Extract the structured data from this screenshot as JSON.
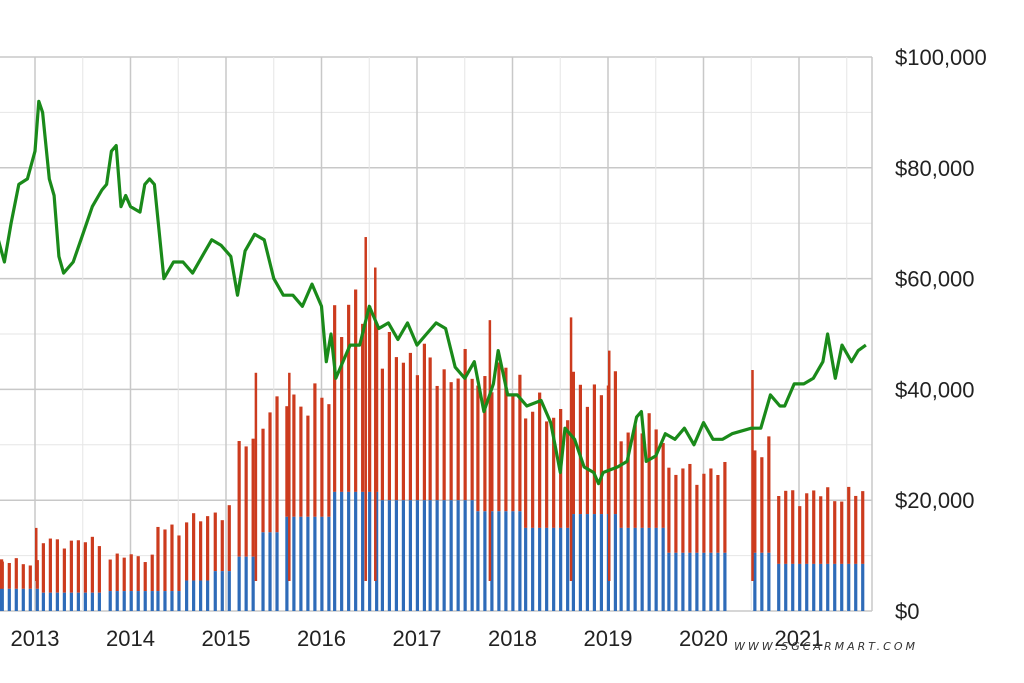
{
  "chart_data": {
    "type": "bar+line",
    "y_axis": {
      "min": 0,
      "max": 100000,
      "ticks": [
        0,
        20000,
        40000,
        60000,
        80000,
        100000
      ],
      "tick_labels": [
        "$0",
        "$20,000",
        "$40,000",
        "$60,000",
        "$80,000",
        "$100,000"
      ],
      "position": "right"
    },
    "x_axis": {
      "tick_labels": [
        "2013",
        "2014",
        "2015",
        "2016",
        "2017",
        "2018",
        "2019",
        "2020",
        "2021"
      ]
    },
    "grid": true,
    "bars": {
      "stacked": true,
      "colors": {
        "bottom": "#2e6bb8",
        "top": "#cc3b1e"
      },
      "segments": [
        {
          "from": "2012.40",
          "to": "2013.05",
          "bottom": 4000,
          "total": 8800
        },
        {
          "from": "2013.05",
          "to": "2013.75",
          "bottom": 3300,
          "total": 12500
        },
        {
          "from": "2013.75",
          "to": "2014.25",
          "bottom": 3600,
          "total": 9800
        },
        {
          "from": "2014.25",
          "to": "2014.55",
          "bottom": 3600,
          "total": 14800
        },
        {
          "from": "2014.55",
          "to": "2014.85",
          "bottom": 5500,
          "total": 16500
        },
        {
          "from": "2014.85",
          "to": "2015.10",
          "bottom": 7200,
          "total": 18000
        },
        {
          "from": "2015.10",
          "to": "2015.35",
          "bottom": 9800,
          "total": 30000
        },
        {
          "from": "2015.35",
          "to": "2015.60",
          "bottom": 14200,
          "total": 36000
        },
        {
          "from": "2015.60",
          "to": "2016.10",
          "bottom": 17000,
          "total": 38000
        },
        {
          "from": "2016.10",
          "to": "2016.60",
          "bottom": 21500,
          "total": 54000
        },
        {
          "from": "2016.60",
          "to": "2017.10",
          "bottom": 20000,
          "total": 46000
        },
        {
          "from": "2017.10",
          "to": "2017.60",
          "bottom": 20000,
          "total": 43000
        },
        {
          "from": "2017.60",
          "to": "2018.10",
          "bottom": 18000,
          "total": 42000
        },
        {
          "from": "2018.10",
          "to": "2018.60",
          "bottom": 15000,
          "total": 36000
        },
        {
          "from": "2018.60",
          "to": "2019.10",
          "bottom": 17500,
          "total": 40000
        },
        {
          "from": "2019.10",
          "to": "2019.60",
          "bottom": 15000,
          "total": 33000
        },
        {
          "from": "2019.60",
          "to": "2020.25",
          "bottom": 10500,
          "total": 25000
        },
        {
          "from": "2020.50",
          "to": "2020.75",
          "bottom": 10500,
          "total": 30000
        },
        {
          "from": "2020.75",
          "to": "2021.75",
          "bottom": 8500,
          "total": 21000
        }
      ],
      "spikes": [
        {
          "x": "2013.00",
          "total": 15000
        },
        {
          "x": "2015.30",
          "total": 43000
        },
        {
          "x": "2015.65",
          "total": 43000
        },
        {
          "x": "2016.45",
          "total": 67500
        },
        {
          "x": "2016.55",
          "total": 62000
        },
        {
          "x": "2017.75",
          "total": 52500
        },
        {
          "x": "2018.60",
          "total": 53000
        },
        {
          "x": "2019.00",
          "total": 47000
        },
        {
          "x": "2020.50",
          "total": 43500
        }
      ]
    },
    "line": {
      "color": "#1a8a1a",
      "points": [
        [
          "2012.60",
          68000
        ],
        [
          "2012.68",
          63000
        ],
        [
          "2012.75",
          70000
        ],
        [
          "2012.83",
          77000
        ],
        [
          "2012.92",
          78000
        ],
        [
          "2013.00",
          83000
        ],
        [
          "2013.04",
          92000
        ],
        [
          "2013.08",
          90000
        ],
        [
          "2013.15",
          78000
        ],
        [
          "2013.20",
          75000
        ],
        [
          "2013.25",
          64000
        ],
        [
          "2013.30",
          61000
        ],
        [
          "2013.40",
          63000
        ],
        [
          "2013.50",
          68000
        ],
        [
          "2013.60",
          73000
        ],
        [
          "2013.70",
          76000
        ],
        [
          "2013.75",
          77000
        ],
        [
          "2013.80",
          83000
        ],
        [
          "2013.85",
          84000
        ],
        [
          "2013.90",
          73000
        ],
        [
          "2013.95",
          75000
        ],
        [
          "2014.00",
          73000
        ],
        [
          "2014.10",
          72000
        ],
        [
          "2014.15",
          77000
        ],
        [
          "2014.20",
          78000
        ],
        [
          "2014.25",
          77000
        ],
        [
          "2014.35",
          60000
        ],
        [
          "2014.45",
          63000
        ],
        [
          "2014.55",
          63000
        ],
        [
          "2014.65",
          61000
        ],
        [
          "2014.75",
          64000
        ],
        [
          "2014.85",
          67000
        ],
        [
          "2014.95",
          66000
        ],
        [
          "2015.05",
          64000
        ],
        [
          "2015.12",
          57000
        ],
        [
          "2015.20",
          65000
        ],
        [
          "2015.30",
          68000
        ],
        [
          "2015.40",
          67000
        ],
        [
          "2015.50",
          60000
        ],
        [
          "2015.60",
          57000
        ],
        [
          "2015.70",
          57000
        ],
        [
          "2015.80",
          55000
        ],
        [
          "2015.90",
          59000
        ],
        [
          "2016.00",
          55000
        ],
        [
          "2016.05",
          45000
        ],
        [
          "2016.10",
          50000
        ],
        [
          "2016.15",
          42000
        ],
        [
          "2016.30",
          48000
        ],
        [
          "2016.40",
          48000
        ],
        [
          "2016.50",
          55000
        ],
        [
          "2016.60",
          51000
        ],
        [
          "2016.70",
          52000
        ],
        [
          "2016.80",
          49000
        ],
        [
          "2016.90",
          52000
        ],
        [
          "2017.00",
          48000
        ],
        [
          "2017.10",
          50000
        ],
        [
          "2017.20",
          52000
        ],
        [
          "2017.30",
          51000
        ],
        [
          "2017.40",
          44000
        ],
        [
          "2017.50",
          42000
        ],
        [
          "2017.60",
          45000
        ],
        [
          "2017.70",
          36000
        ],
        [
          "2017.80",
          41000
        ],
        [
          "2017.85",
          47000
        ],
        [
          "2017.95",
          39000
        ],
        [
          "2018.05",
          39000
        ],
        [
          "2018.15",
          37000
        ],
        [
          "2018.30",
          38000
        ],
        [
          "2018.40",
          34000
        ],
        [
          "2018.50",
          25000
        ],
        [
          "2018.55",
          33000
        ],
        [
          "2018.65",
          31000
        ],
        [
          "2018.75",
          26000
        ],
        [
          "2018.85",
          25000
        ],
        [
          "2018.90",
          23000
        ],
        [
          "2018.95",
          25000
        ],
        [
          "2019.10",
          26000
        ],
        [
          "2019.20",
          27000
        ],
        [
          "2019.30",
          35000
        ],
        [
          "2019.35",
          36000
        ],
        [
          "2019.40",
          27000
        ],
        [
          "2019.50",
          28000
        ],
        [
          "2019.60",
          32000
        ],
        [
          "2019.70",
          31000
        ],
        [
          "2019.80",
          33000
        ],
        [
          "2019.90",
          30000
        ],
        [
          "2020.00",
          34000
        ],
        [
          "2020.10",
          31000
        ],
        [
          "2020.20",
          31000
        ],
        [
          "2020.30",
          32000
        ],
        [
          "2020.50",
          33000
        ],
        [
          "2020.60",
          33000
        ],
        [
          "2020.70",
          39000
        ],
        [
          "2020.80",
          37000
        ],
        [
          "2020.85",
          37000
        ],
        [
          "2020.95",
          41000
        ],
        [
          "2021.05",
          41000
        ],
        [
          "2021.15",
          42000
        ],
        [
          "2021.25",
          45000
        ],
        [
          "2021.30",
          50000
        ],
        [
          "2021.38",
          42000
        ],
        [
          "2021.45",
          48000
        ],
        [
          "2021.55",
          45000
        ],
        [
          "2021.62",
          47000
        ],
        [
          "2021.70",
          48000
        ]
      ]
    }
  },
  "watermark": "WWW.SGCARMART.COM"
}
